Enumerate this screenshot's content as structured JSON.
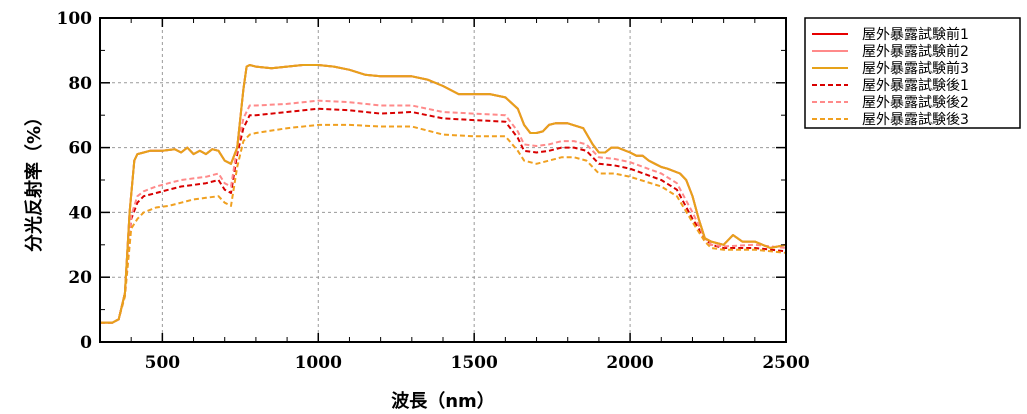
{
  "chart_data": {
    "type": "line",
    "xlabel": "波長（nm）",
    "ylabel": "分光反射率（%）",
    "xlim": [
      300,
      2500
    ],
    "ylim": [
      0,
      100
    ],
    "xticks": [
      500,
      1000,
      1500,
      2000,
      2500
    ],
    "yticks": [
      0,
      20,
      40,
      60,
      80,
      100
    ],
    "grid": true,
    "legend_position": "right-top",
    "series": [
      {
        "name": "屋外暴露試験前1",
        "color": "#e60000",
        "dash": "solid",
        "x": [
          300,
          340,
          360,
          380,
          395,
          410,
          420,
          440,
          460,
          500,
          540,
          560,
          580,
          600,
          620,
          640,
          660,
          680,
          700,
          720,
          740,
          760,
          770,
          780,
          800,
          850,
          900,
          950,
          1000,
          1050,
          1100,
          1150,
          1200,
          1250,
          1300,
          1350,
          1400,
          1450,
          1500,
          1550,
          1600,
          1640,
          1660,
          1680,
          1700,
          1720,
          1740,
          1760,
          1780,
          1800,
          1850,
          1880,
          1900,
          1920,
          1940,
          1960,
          2000,
          2020,
          2040,
          2060,
          2080,
          2100,
          2120,
          2160,
          2180,
          2200,
          2220,
          2240,
          2260,
          2300,
          2330,
          2360,
          2400,
          2450,
          2500
        ],
        "y": [
          6,
          6,
          7,
          15,
          40,
          56,
          58,
          58.5,
          59,
          59,
          59.5,
          58.5,
          60,
          58,
          59,
          58,
          59.5,
          59,
          56,
          55,
          60,
          78,
          85,
          85.5,
          85,
          84.5,
          85,
          85.5,
          85.5,
          85,
          84,
          82.5,
          82,
          82,
          82,
          81,
          79,
          76.5,
          76.5,
          76.5,
          75.5,
          72,
          67,
          64.5,
          64.5,
          65,
          67,
          67.5,
          67.5,
          67.5,
          66,
          61,
          58.5,
          58.5,
          60,
          60,
          58.5,
          57.5,
          57.5,
          56,
          55,
          54,
          53.5,
          52,
          50,
          45,
          38,
          32,
          31,
          30,
          33,
          31,
          31,
          29,
          30
        ]
      },
      {
        "name": "屋外暴露試験前2",
        "color": "#ff8a8a",
        "dash": "solid",
        "x": [
          300,
          340,
          360,
          380,
          395,
          410,
          420,
          440,
          460,
          500,
          540,
          560,
          580,
          600,
          620,
          640,
          660,
          680,
          700,
          720,
          740,
          760,
          770,
          780,
          800,
          850,
          900,
          950,
          1000,
          1050,
          1100,
          1150,
          1200,
          1250,
          1300,
          1350,
          1400,
          1450,
          1500,
          1550,
          1600,
          1640,
          1660,
          1680,
          1700,
          1720,
          1740,
          1760,
          1780,
          1800,
          1850,
          1880,
          1900,
          1920,
          1940,
          1960,
          2000,
          2020,
          2040,
          2060,
          2080,
          2100,
          2120,
          2160,
          2180,
          2200,
          2220,
          2240,
          2260,
          2300,
          2330,
          2360,
          2400,
          2450,
          2500
        ],
        "y": [
          6,
          6,
          7,
          15,
          40,
          56,
          58,
          58.5,
          59,
          59,
          59.5,
          58.5,
          60,
          58,
          59,
          58,
          59.5,
          59,
          56,
          55,
          60,
          78,
          85,
          85.5,
          85,
          84.5,
          85,
          85.5,
          85.5,
          85,
          84,
          82.5,
          82,
          82,
          82,
          81,
          79,
          76.5,
          76.5,
          76.5,
          75.5,
          72,
          67,
          64.5,
          64.5,
          65,
          67,
          67.5,
          67.5,
          67.5,
          66,
          61,
          58.5,
          58.5,
          60,
          60,
          58.5,
          57.5,
          57.5,
          56,
          55,
          54,
          53.5,
          52,
          50,
          45,
          38,
          32,
          31,
          30,
          33,
          31,
          31,
          29,
          30
        ]
      },
      {
        "name": "屋外暴露試験前3",
        "color": "#e6a21a",
        "dash": "solid",
        "x": [
          300,
          340,
          360,
          380,
          395,
          410,
          420,
          440,
          460,
          500,
          540,
          560,
          580,
          600,
          620,
          640,
          660,
          680,
          700,
          720,
          740,
          760,
          770,
          780,
          800,
          850,
          900,
          950,
          1000,
          1050,
          1100,
          1150,
          1200,
          1250,
          1300,
          1350,
          1400,
          1450,
          1500,
          1550,
          1600,
          1640,
          1660,
          1680,
          1700,
          1720,
          1740,
          1760,
          1780,
          1800,
          1850,
          1880,
          1900,
          1920,
          1940,
          1960,
          2000,
          2020,
          2040,
          2060,
          2080,
          2100,
          2120,
          2160,
          2180,
          2200,
          2220,
          2240,
          2260,
          2300,
          2330,
          2360,
          2400,
          2450,
          2500
        ],
        "y": [
          6,
          6,
          7,
          15,
          40,
          56,
          58,
          58.5,
          59,
          59,
          59.5,
          58.5,
          60,
          58,
          59,
          58,
          59.5,
          59,
          56,
          55,
          60,
          78,
          85,
          85.5,
          85,
          84.5,
          85,
          85.5,
          85.5,
          85,
          84,
          82.5,
          82,
          82,
          82,
          81,
          79,
          76.5,
          76.5,
          76.5,
          75.5,
          72,
          67,
          64.5,
          64.5,
          65,
          67,
          67.5,
          67.5,
          67.5,
          66,
          61,
          58.5,
          58.5,
          60,
          60,
          58.5,
          57.5,
          57.5,
          56,
          55,
          54,
          53.5,
          52,
          50,
          45,
          38,
          32,
          31,
          30,
          33,
          31,
          31,
          29,
          30
        ]
      },
      {
        "name": "屋外暴露試験後1",
        "color": "#d80000",
        "dash": "dashed",
        "x": [
          300,
          340,
          360,
          380,
          400,
          420,
          440,
          480,
          520,
          560,
          600,
          640,
          680,
          700,
          720,
          740,
          760,
          780,
          800,
          900,
          1000,
          1100,
          1200,
          1300,
          1400,
          1500,
          1600,
          1640,
          1660,
          1700,
          1740,
          1780,
          1820,
          1860,
          1900,
          1950,
          2000,
          2100,
          2150,
          2200,
          2240,
          2260,
          2300,
          2400,
          2500
        ],
        "y": [
          6,
          6,
          7,
          15,
          38,
          43,
          45,
          46,
          47,
          48,
          48.5,
          49,
          50,
          47,
          46,
          58,
          66,
          70,
          70,
          71,
          72,
          71.5,
          70.5,
          71,
          69,
          68.5,
          68,
          63,
          59,
          58.5,
          59,
          60,
          60,
          59,
          55,
          54.5,
          53.5,
          50,
          47,
          38,
          32,
          30,
          29,
          29,
          28
        ]
      },
      {
        "name": "屋外暴露試験後2",
        "color": "#ff8a8a",
        "dash": "dashed",
        "x": [
          300,
          340,
          360,
          380,
          400,
          420,
          440,
          480,
          520,
          560,
          600,
          640,
          680,
          700,
          720,
          740,
          760,
          780,
          800,
          900,
          1000,
          1100,
          1200,
          1300,
          1400,
          1500,
          1600,
          1640,
          1660,
          1700,
          1740,
          1780,
          1820,
          1860,
          1900,
          1950,
          2000,
          2100,
          2150,
          2200,
          2240,
          2260,
          2300,
          2400,
          2500
        ],
        "y": [
          6,
          6,
          7,
          15,
          39,
          45,
          46.5,
          48,
          49,
          50,
          50.5,
          51,
          52,
          49,
          48,
          60,
          69,
          73,
          73,
          73.5,
          74.5,
          74,
          73,
          73,
          71,
          70.5,
          70,
          65,
          61,
          60.5,
          61,
          62,
          62,
          61,
          57,
          56.5,
          55.5,
          52,
          49,
          40,
          32,
          30,
          29.5,
          30,
          29
        ]
      },
      {
        "name": "屋外暴露試験後3",
        "color": "#f0a020",
        "dash": "dashed",
        "x": [
          300,
          340,
          360,
          380,
          400,
          420,
          440,
          480,
          520,
          560,
          600,
          640,
          680,
          700,
          720,
          740,
          760,
          780,
          800,
          900,
          1000,
          1100,
          1200,
          1300,
          1400,
          1500,
          1600,
          1640,
          1660,
          1700,
          1740,
          1780,
          1820,
          1860,
          1900,
          1950,
          2000,
          2100,
          2150,
          2200,
          2240,
          2260,
          2300,
          2400,
          2500
        ],
        "y": [
          6,
          6,
          7,
          14,
          35,
          38,
          40,
          41.5,
          42,
          43,
          44,
          44.5,
          45,
          43,
          42,
          54,
          62,
          64,
          64.5,
          66,
          67,
          67,
          66.5,
          66.5,
          64,
          63.5,
          63.5,
          59,
          56,
          55,
          56,
          57,
          57,
          56,
          52,
          52,
          51,
          48,
          45,
          37,
          31,
          29,
          28.5,
          28.5,
          27.5
        ]
      }
    ]
  }
}
